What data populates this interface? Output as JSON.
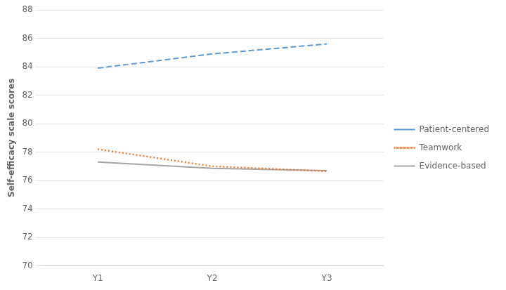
{
  "chart_data": {
    "type": "line",
    "ylabel": "Self-efficacy scale scores",
    "categories": [
      "Y1",
      "Y2",
      "Y3"
    ],
    "series": [
      {
        "name": "Patient-centered",
        "color": "#5B9BD5",
        "line_style": "dashed",
        "marker": "none",
        "values": [
          83.9,
          84.9,
          85.6
        ]
      },
      {
        "name": "Teamwork",
        "color": "#ED7D31",
        "line_style": "dotted",
        "marker": "none",
        "values": [
          78.2,
          77.0,
          76.65
        ]
      },
      {
        "name": "Evidence-based",
        "color": "#A5A5A5",
        "line_style": "solid",
        "marker": "none",
        "values": [
          77.3,
          76.85,
          76.7
        ]
      }
    ],
    "ylim": [
      70,
      88
    ],
    "yticks": [
      70,
      72,
      74,
      76,
      78,
      80,
      82,
      84,
      86,
      88
    ],
    "grid": "y",
    "legend": "right"
  }
}
